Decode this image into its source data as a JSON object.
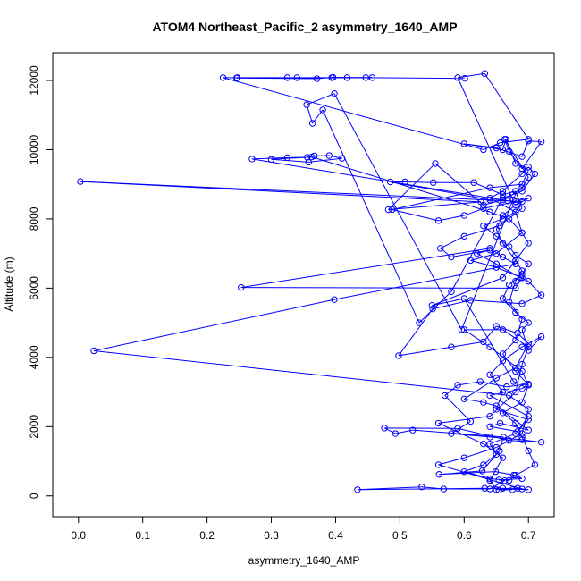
{
  "chart_data": {
    "type": "line",
    "title": "ATOM4 Northeast_Pacific_2 asymmetry_1640_AMP",
    "xlabel": "asymmetry_1640_AMP",
    "ylabel": "Altitude (m)",
    "xlim": [
      -0.04,
      0.74
    ],
    "ylim": [
      -600,
      12800
    ],
    "xticks": [
      0.0,
      0.1,
      0.2,
      0.3,
      0.4,
      0.5,
      0.6,
      0.7
    ],
    "xtick_labels": [
      "0.0",
      "0.1",
      "0.2",
      "0.3",
      "0.4",
      "0.5",
      "0.6",
      "0.7"
    ],
    "yticks": [
      0,
      2000,
      4000,
      6000,
      8000,
      10000,
      12000
    ],
    "ytick_labels": [
      "0",
      "2000",
      "4000",
      "6000",
      "8000",
      "10000",
      "12000"
    ],
    "grid": false,
    "marker": "open-circle",
    "colors": {
      "series": "#0000ff",
      "axes": "#000000",
      "background": "#ffffff"
    },
    "series": [
      {
        "points": [
          [
            0.675,
            180
          ],
          [
            0.654,
            170
          ],
          [
            0.683,
            220
          ],
          [
            0.7,
            180
          ],
          [
            0.632,
            220
          ],
          [
            0.434,
            180
          ],
          [
            0.534,
            260
          ],
          [
            0.568,
            200
          ],
          [
            0.64,
            200
          ],
          [
            0.663,
            440
          ],
          [
            0.654,
            460
          ],
          [
            0.69,
            500
          ],
          [
            0.677,
            600
          ],
          [
            0.649,
            700
          ],
          [
            0.561,
            620
          ],
          [
            0.628,
            720
          ],
          [
            0.655,
            1300
          ],
          [
            0.661,
            1700
          ],
          [
            0.52,
            1900
          ],
          [
            0.493,
            1800
          ],
          [
            0.476,
            1960
          ],
          [
            0.59,
            1950
          ],
          [
            0.67,
            1600
          ],
          [
            0.72,
            1550
          ],
          [
            0.69,
            1620
          ],
          [
            0.64,
            1700
          ],
          [
            0.58,
            1800
          ],
          [
            0.61,
            2150
          ],
          [
            0.57,
            2900
          ],
          [
            0.59,
            3200
          ],
          [
            0.625,
            3300
          ],
          [
            0.666,
            3150
          ],
          [
            0.7,
            3230
          ],
          [
            0.69,
            3100
          ],
          [
            0.64,
            2900
          ],
          [
            0.7,
            2300
          ],
          [
            0.683,
            1860
          ],
          [
            0.64,
            2000
          ],
          [
            0.656,
            2100
          ],
          [
            0.7,
            1900
          ],
          [
            0.65,
            2600
          ],
          [
            0.63,
            2700
          ],
          [
            0.6,
            2800
          ],
          [
            0.65,
            3400
          ],
          [
            0.68,
            3700
          ],
          [
            0.7,
            4400
          ],
          [
            0.683,
            4700
          ],
          [
            0.65,
            4900
          ],
          [
            0.63,
            4450
          ],
          [
            0.58,
            4300
          ],
          [
            0.498,
            4050
          ],
          [
            0.551,
            5400
          ],
          [
            0.61,
            5650
          ],
          [
            0.69,
            5550
          ],
          [
            0.72,
            5800
          ],
          [
            0.7,
            6200
          ],
          [
            0.688,
            6300
          ],
          [
            0.65,
            6700
          ],
          [
            0.62,
            7000
          ],
          [
            0.64,
            7100
          ],
          [
            0.58,
            6900
          ],
          [
            0.563,
            7150
          ],
          [
            0.6,
            7500
          ],
          [
            0.655,
            7800
          ],
          [
            0.69,
            8300
          ],
          [
            0.68,
            8800
          ],
          [
            0.66,
            8700
          ],
          [
            0.615,
            9050
          ],
          [
            0.552,
            9050
          ],
          [
            0.508,
            9070
          ],
          [
            0.485,
            9070
          ],
          [
            0.64,
            8550
          ],
          [
            0.69,
            8500
          ],
          [
            0.68,
            8200
          ],
          [
            0.66,
            8000
          ],
          [
            0.63,
            7800
          ],
          [
            0.65,
            7500
          ],
          [
            0.67,
            7200
          ],
          [
            0.68,
            6950
          ],
          [
            0.7,
            6700
          ],
          [
            0.69,
            6400
          ],
          [
            0.67,
            6100
          ],
          [
            0.66,
            5700
          ],
          [
            0.68,
            5300
          ],
          [
            0.7,
            5000
          ],
          [
            0.69,
            4800
          ],
          [
            0.7,
            4200
          ],
          [
            0.72,
            4600
          ],
          [
            0.69,
            4300
          ],
          [
            0.66,
            3900
          ],
          [
            0.64,
            3500
          ],
          [
            0.66,
            3000
          ],
          [
            0.65,
            2500
          ],
          [
            0.7,
            2200
          ],
          [
            0.68,
            1800
          ],
          [
            0.64,
            1500
          ],
          [
            0.65,
            1200
          ],
          [
            0.63,
            900
          ],
          [
            0.6,
            700
          ],
          [
            0.64,
            500
          ],
          [
            0.67,
            450
          ],
          [
            0.68,
            600
          ],
          [
            0.71,
            900
          ],
          [
            0.7,
            1300
          ],
          [
            0.69,
            1700
          ],
          [
            0.68,
            2100
          ],
          [
            0.66,
            2400
          ],
          [
            0.69,
            2700
          ],
          [
            0.7,
            3200
          ],
          [
            0.68,
            3600
          ],
          [
            0.66,
            4100
          ],
          [
            0.68,
            4500
          ],
          [
            0.69,
            5100
          ],
          [
            0.67,
            5600
          ],
          [
            0.68,
            6200
          ],
          [
            0.69,
            6500
          ],
          [
            0.68,
            6800
          ],
          [
            0.66,
            7300
          ],
          [
            0.65,
            7700
          ],
          [
            0.66,
            8100
          ],
          [
            0.68,
            8400
          ],
          [
            0.7,
            8600
          ],
          [
            0.68,
            8500
          ],
          [
            0.63,
            8300
          ],
          [
            0.6,
            8100
          ],
          [
            0.56,
            7950
          ],
          [
            0.488,
            8270
          ],
          [
            0.64,
            8900
          ],
          [
            0.69,
            9000
          ],
          [
            0.7,
            9400
          ],
          [
            0.68,
            9600
          ],
          [
            0.665,
            10300
          ],
          [
            0.66,
            10000
          ],
          [
            0.6,
            10170
          ],
          [
            0.65,
            10050
          ],
          [
            0.69,
            9800
          ],
          [
            0.7,
            10250
          ],
          [
            0.72,
            10230
          ],
          [
            0.69,
            9450
          ],
          [
            0.67,
            9950
          ],
          [
            0.663,
            10300
          ],
          [
            0.7,
            9200
          ],
          [
            0.69,
            8900
          ],
          [
            0.675,
            8700
          ],
          [
            0.66,
            8550
          ],
          [
            0.63,
            8400
          ],
          [
            0.555,
            9600
          ],
          [
            0.482,
            8270
          ],
          [
            0.626,
            8490
          ],
          [
            0.003,
            9080
          ],
          [
            0.668,
            8520
          ],
          [
            0.27,
            9730
          ],
          [
            0.325,
            9770
          ],
          [
            0.356,
            9780
          ],
          [
            0.367,
            9820
          ],
          [
            0.39,
            9830
          ],
          [
            0.41,
            9750
          ],
          [
            0.358,
            9640
          ],
          [
            0.3,
            9720
          ],
          [
            0.363,
            9790
          ],
          [
            0.64,
            8200
          ],
          [
            0.67,
            8000
          ],
          [
            0.69,
            7600
          ],
          [
            0.65,
            7000
          ],
          [
            0.61,
            6800
          ],
          [
            0.65,
            6600
          ],
          [
            0.69,
            6300
          ],
          [
            0.68,
            6000
          ],
          [
            0.253,
            6020
          ],
          [
            0.64,
            7150
          ],
          [
            0.66,
            6900
          ],
          [
            0.68,
            6700
          ],
          [
            0.398,
            5670
          ],
          [
            0.024,
            4190
          ],
          [
            0.67,
            2900
          ],
          [
            0.7,
            2500
          ],
          [
            0.69,
            1800
          ],
          [
            0.65,
            1400
          ],
          [
            0.6,
            1100
          ],
          [
            0.56,
            900
          ],
          [
            0.69,
            200
          ],
          [
            0.66,
            220
          ],
          [
            0.65,
            180
          ],
          [
            0.64,
            450
          ],
          [
            0.66,
            1100
          ],
          [
            0.63,
            1500
          ],
          [
            0.56,
            2100
          ],
          [
            0.64,
            2300
          ],
          [
            0.68,
            3000
          ],
          [
            0.69,
            3800
          ],
          [
            0.7,
            4300
          ],
          [
            0.66,
            4800
          ],
          [
            0.6,
            4800
          ],
          [
            0.64,
            4300
          ],
          [
            0.69,
            3600
          ],
          [
            0.7,
            3200
          ],
          [
            0.677,
            3300
          ],
          [
            0.6,
            5700
          ],
          [
            0.55,
            5500
          ],
          [
            0.66,
            6300
          ],
          [
            0.7,
            7300
          ],
          [
            0.69,
            7600
          ],
          [
            0.68,
            8200
          ],
          [
            0.64,
            8600
          ],
          [
            0.66,
            8800
          ],
          [
            0.69,
            9300
          ],
          [
            0.7,
            9500
          ],
          [
            0.71,
            9300
          ],
          [
            0.69,
            8800
          ],
          [
            0.66,
            8600
          ],
          [
            0.58,
            5900
          ],
          [
            0.53,
            5000
          ],
          [
            0.38,
            11150
          ],
          [
            0.364,
            10760
          ],
          [
            0.355,
            11300
          ],
          [
            0.398,
            11620
          ],
          [
            0.596,
            4800
          ],
          [
            0.676,
            8550
          ],
          [
            0.59,
            12080
          ],
          [
            0.632,
            12200
          ],
          [
            0.7,
            10300
          ],
          [
            0.656,
            10200
          ],
          [
            0.63,
            10000
          ],
          [
            0.225,
            12080
          ],
          [
            0.247,
            12080
          ],
          [
            0.325,
            12080
          ],
          [
            0.34,
            12080
          ],
          [
            0.394,
            12080
          ],
          [
            0.418,
            12080
          ],
          [
            0.447,
            12080
          ],
          [
            0.457,
            12080
          ],
          [
            0.246,
            12070
          ],
          [
            0.371,
            12050
          ],
          [
            0.396,
            12090
          ],
          [
            0.601,
            12060
          ]
        ]
      }
    ]
  }
}
